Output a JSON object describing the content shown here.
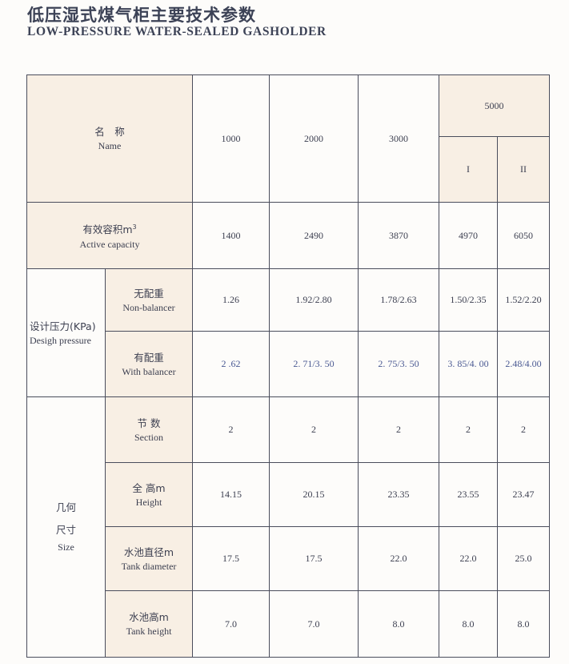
{
  "title": {
    "cn": "低压湿式煤气柜主要技术参数",
    "en": "LOW-PRESSURE WATER-SEALED GASHOLDER"
  },
  "header": {
    "name_cn": "名　称",
    "name_en": "Name",
    "columns": [
      "1000",
      "2000",
      "3000"
    ],
    "group": "5000",
    "subcolumns": [
      "I",
      "II"
    ]
  },
  "rows": {
    "capacity": {
      "cn": "有效容积m",
      "sup": "3",
      "en": "Active capacity",
      "values": [
        "1400",
        "2490",
        "3870",
        "4970",
        "6050"
      ]
    },
    "pressure": {
      "cn": "设计压力(KPa)",
      "en": "Desigh pressure",
      "non_balancer": {
        "cn": "无配重",
        "en": "Non-balancer",
        "values": [
          "1.26",
          "1.92/2.80",
          "1.78/2.63",
          "1.50/2.35",
          "1.52/2.20"
        ]
      },
      "with_balancer": {
        "cn": "有配重",
        "en": "With balancer",
        "values": [
          "2 .62",
          "2. 71/3. 50",
          "2. 75/3. 50",
          "3. 85/4. 00",
          "2.48/4.00"
        ]
      }
    },
    "size": {
      "cn1": "几何",
      "cn2": "尺寸",
      "en": "Size",
      "section": {
        "cn": "节 数",
        "en": "Section",
        "values": [
          "2",
          "2",
          "2",
          "2",
          "2"
        ]
      },
      "height": {
        "cn": "全 高m",
        "en": "Height",
        "values": [
          "14.15",
          "20.15",
          "23.35",
          "23.55",
          "23.47"
        ]
      },
      "tank_diameter": {
        "cn": "水池直径m",
        "en": "Tank diameter",
        "values": [
          "17.5",
          "17.5",
          "22.0",
          "22.0",
          "25.0"
        ]
      },
      "tank_height": {
        "cn": "水池高m",
        "en": "Tank height",
        "values": [
          "7.0",
          "7.0",
          "8.0",
          "8.0",
          "8.0"
        ]
      }
    }
  },
  "colors": {
    "label_bg": "#f8efe4",
    "text": "#3c3f50",
    "border": "#4a4d5c"
  }
}
